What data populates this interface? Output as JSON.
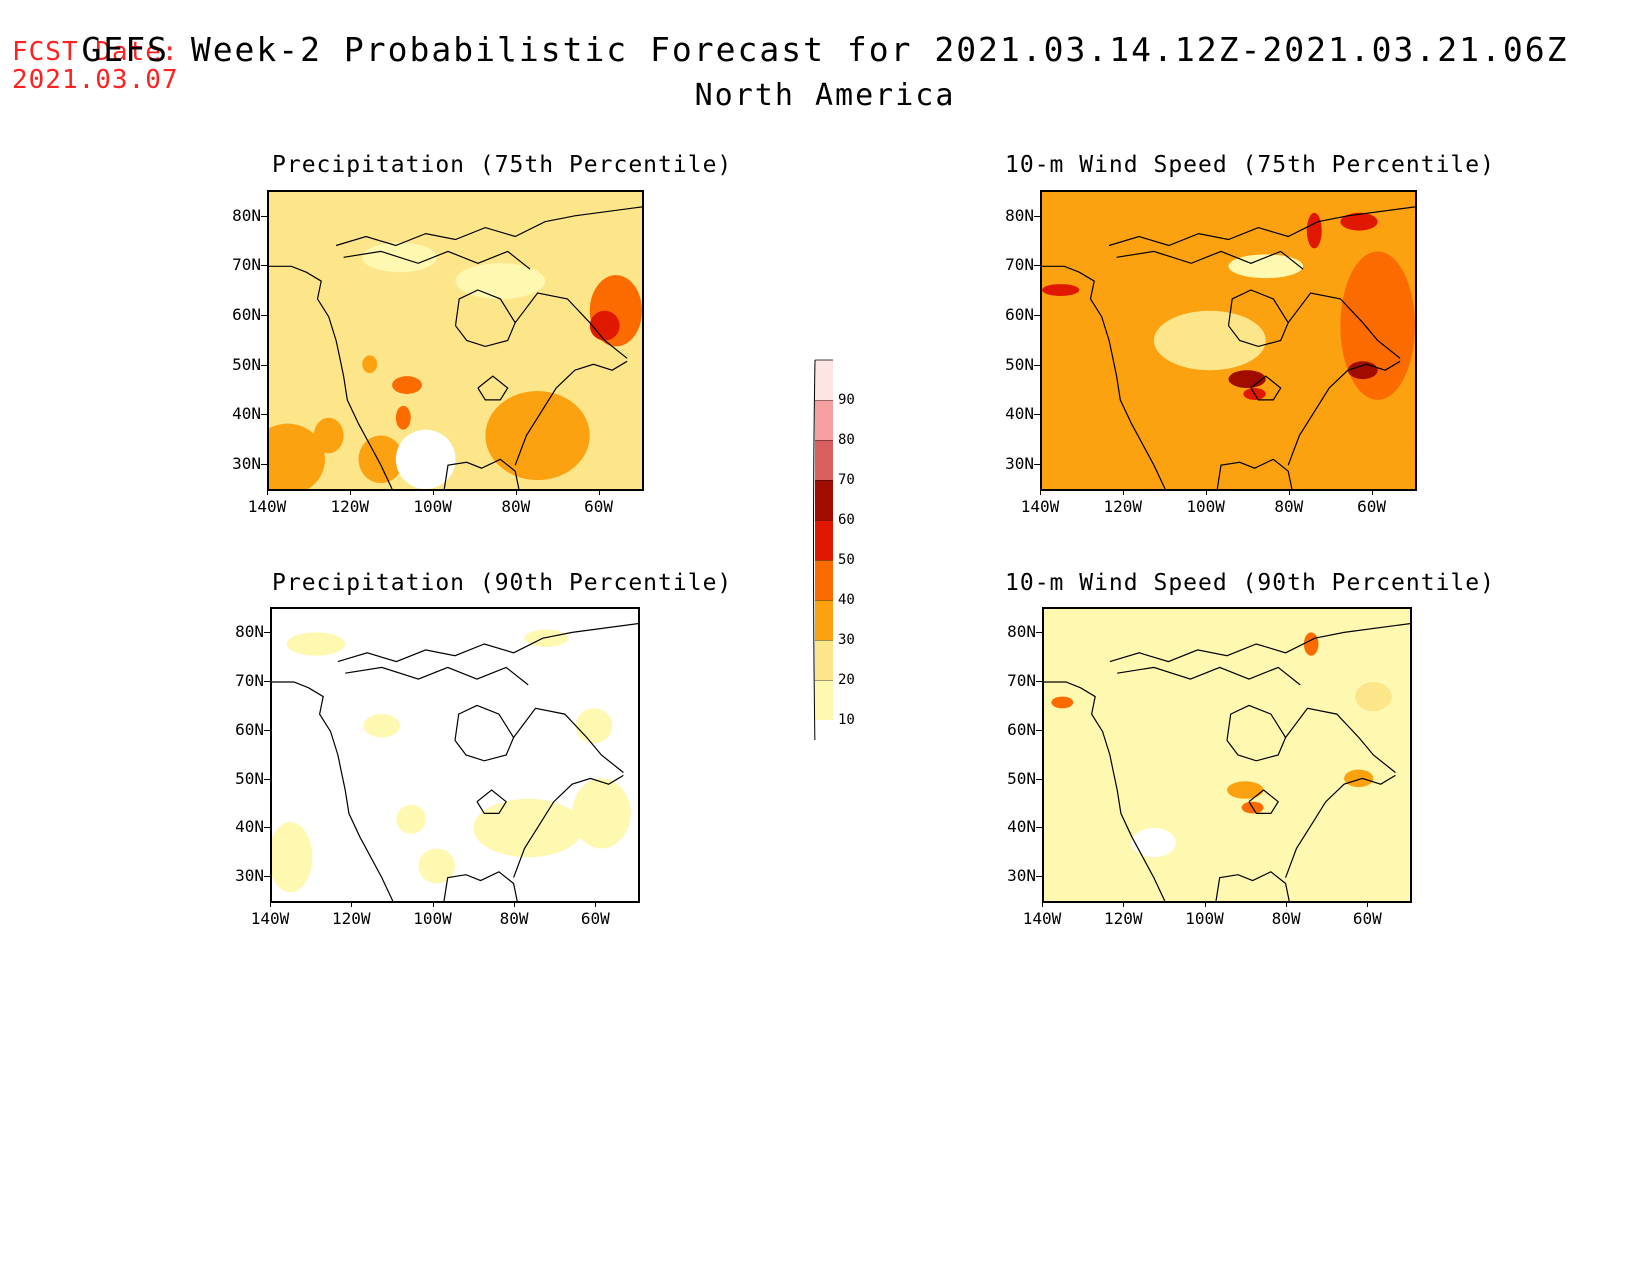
{
  "fcst_date": {
    "label": "FCST Date:",
    "value": "2021.03.07"
  },
  "title": "GEFS Week-2 Probabilistic Forecast for 2021.03.14.12Z-2021.03.21.06Z",
  "subtitle": "North America",
  "colorbar": {
    "levels": [
      "10",
      "20",
      "30",
      "40",
      "50",
      "60",
      "70",
      "80",
      "90"
    ],
    "colors": [
      "#fff8b0",
      "#fde68a",
      "#fca10f",
      "#fb6b00",
      "#e01800",
      "#a00c00",
      "#d96060",
      "#f4a0a0",
      "#ffe4e4"
    ]
  },
  "axes": {
    "lat_ticks": [
      "80N",
      "70N",
      "60N",
      "50N",
      "40N",
      "30N"
    ],
    "lon_ticks": [
      "140W",
      "120W",
      "100W",
      "80W",
      "60W"
    ]
  },
  "panels": [
    {
      "id": "precip75",
      "title": "Precipitation (75th Percentile)",
      "base": "#fde68a"
    },
    {
      "id": "wind75",
      "title": "10-m Wind Speed (75th Percentile)",
      "base": "#fca10f"
    },
    {
      "id": "precip90",
      "title": "Precipitation (90th Percentile)",
      "base": "#ffffff"
    },
    {
      "id": "wind90",
      "title": "10-m Wind Speed (90th Percentile)",
      "base": "#fff8b0"
    }
  ]
}
